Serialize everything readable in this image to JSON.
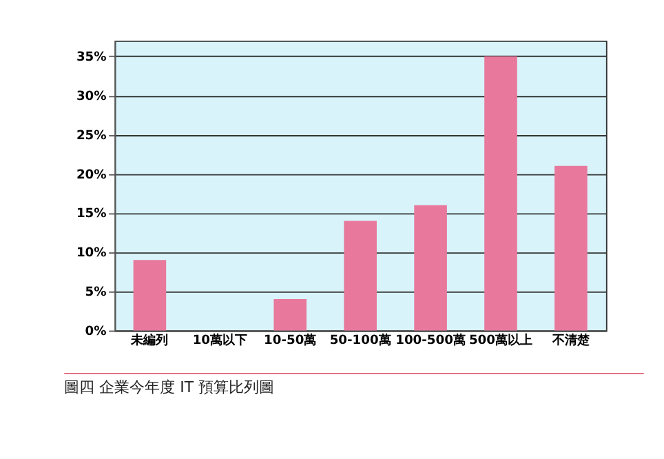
{
  "chart_data": {
    "type": "bar",
    "categories": [
      "未編列",
      "10萬以下",
      "10-50萬",
      "50-100萬",
      "100-500萬",
      "500萬以上",
      "不清楚"
    ],
    "values": [
      9,
      0,
      4,
      14,
      16,
      35,
      21
    ],
    "color": "#e8789c",
    "ylim": [
      0,
      37
    ],
    "yticks": [
      {
        "value": 0,
        "label": "0%"
      },
      {
        "value": 5,
        "label": "5%"
      },
      {
        "value": 10,
        "label": "10%"
      },
      {
        "value": 15,
        "label": "15%"
      },
      {
        "value": 20,
        "label": "20%"
      },
      {
        "value": 25,
        "label": "25%"
      },
      {
        "value": 30,
        "label": "30%"
      },
      {
        "value": 35,
        "label": "35%"
      }
    ],
    "grid": "y",
    "annotations": [
      "圖四  企業今年度  IT 預算比列圖"
    ]
  }
}
